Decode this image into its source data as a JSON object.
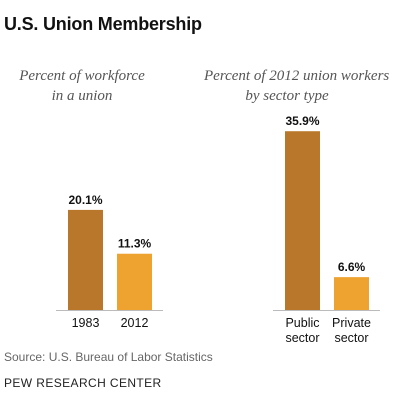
{
  "title": "U.S. Union Membership",
  "source": "Source: U.S. Bureau of Labor Statistics",
  "organization": "PEW RESEARCH CENTER",
  "chart_data": [
    {
      "type": "bar",
      "subtitle": [
        "Percent of workforce",
        "in a union"
      ],
      "categories": [
        [
          "1983"
        ],
        [
          "2012"
        ]
      ],
      "values": [
        20.1,
        11.3
      ],
      "labels": [
        "20.1%",
        "11.3%"
      ],
      "colors": [
        "#b8772a",
        "#eea331"
      ],
      "ylim": [
        0,
        36
      ]
    },
    {
      "type": "bar",
      "subtitle": [
        "Percent of 2012 union workers",
        "by sector type"
      ],
      "categories": [
        [
          "Public",
          "sector"
        ],
        [
          "Private",
          "sector"
        ]
      ],
      "values": [
        35.9,
        6.6
      ],
      "labels": [
        "35.9%",
        "6.6%"
      ],
      "colors": [
        "#b8772a",
        "#eea331"
      ],
      "ylim": [
        0,
        36
      ]
    }
  ]
}
